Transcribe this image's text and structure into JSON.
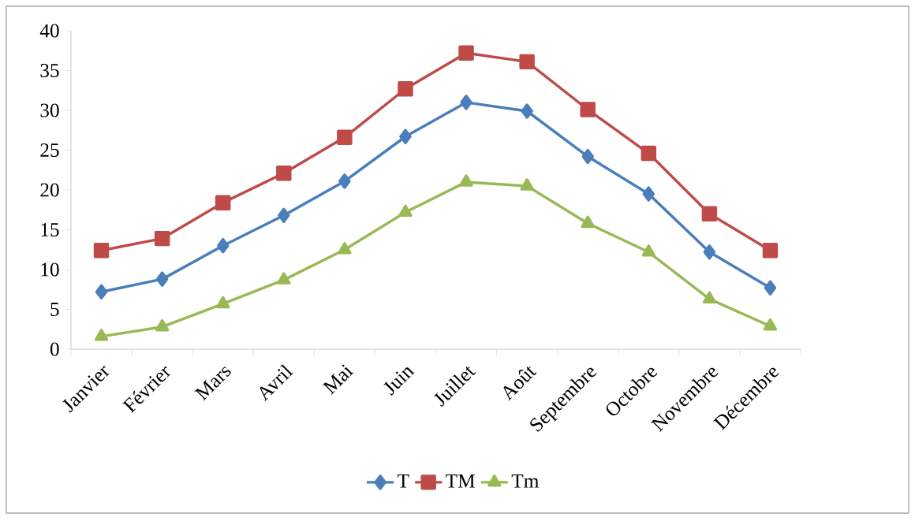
{
  "chart_data": {
    "type": "line",
    "categories": [
      "Janvier",
      "Février",
      "Mars",
      "Avril",
      "Mai",
      "Juin",
      "Juillet",
      "Août",
      "Septembre",
      "Octobre",
      "Novembre",
      "Décembre"
    ],
    "series": [
      {
        "name": "T",
        "color": "#4a7ebb",
        "marker": "diamond",
        "values": [
          7.2,
          8.8,
          13.0,
          16.8,
          21.1,
          26.7,
          31.0,
          29.9,
          24.2,
          19.5,
          12.2,
          7.7
        ]
      },
      {
        "name": "TM",
        "color": "#be4b48",
        "marker": "square",
        "values": [
          12.4,
          13.9,
          18.4,
          22.1,
          26.6,
          32.7,
          37.2,
          36.1,
          30.1,
          24.6,
          17.0,
          12.4
        ]
      },
      {
        "name": "Tm",
        "color": "#98b954",
        "marker": "triangle",
        "values": [
          1.6,
          2.8,
          5.7,
          8.7,
          12.5,
          17.2,
          21.0,
          20.5,
          15.8,
          12.2,
          6.3,
          2.9
        ]
      }
    ],
    "ylim": [
      0,
      40
    ],
    "yticks": [
      0,
      5,
      10,
      15,
      20,
      25,
      30,
      35,
      40
    ],
    "grid": false,
    "legend": "bottom",
    "line_style": "solid"
  }
}
